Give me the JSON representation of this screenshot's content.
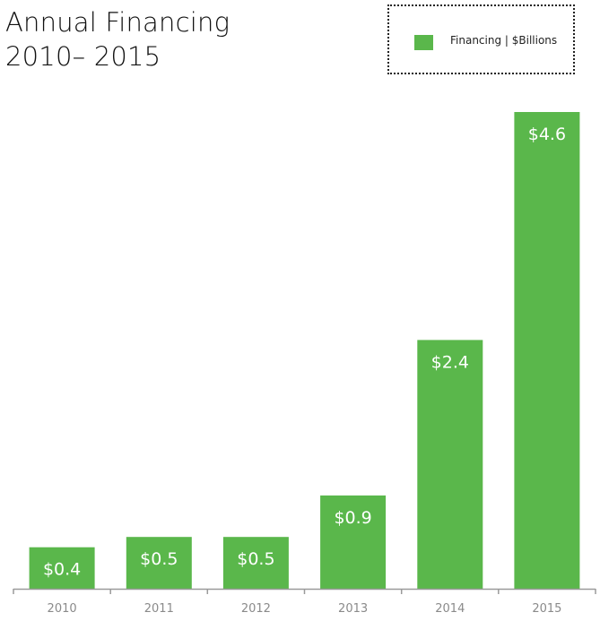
{
  "chart_data": {
    "type": "bar",
    "title_line1": "Annual Financing",
    "title_line2": "2010– 2015",
    "categories": [
      "2010",
      "2011",
      "2012",
      "2013",
      "2014",
      "2015"
    ],
    "series": [
      {
        "name": "Financing | $Billions",
        "values": [
          0.4,
          0.5,
          0.5,
          0.9,
          2.4,
          4.6
        ],
        "data_labels": [
          "$0.4",
          "$0.5",
          "$0.5",
          "$0.9",
          "$2.4",
          "$4.6"
        ],
        "color": "#5ab74b"
      }
    ],
    "ylim": [
      0,
      4.6
    ],
    "grid": false,
    "legend_position": "top-right",
    "xlabel": "",
    "ylabel": ""
  }
}
